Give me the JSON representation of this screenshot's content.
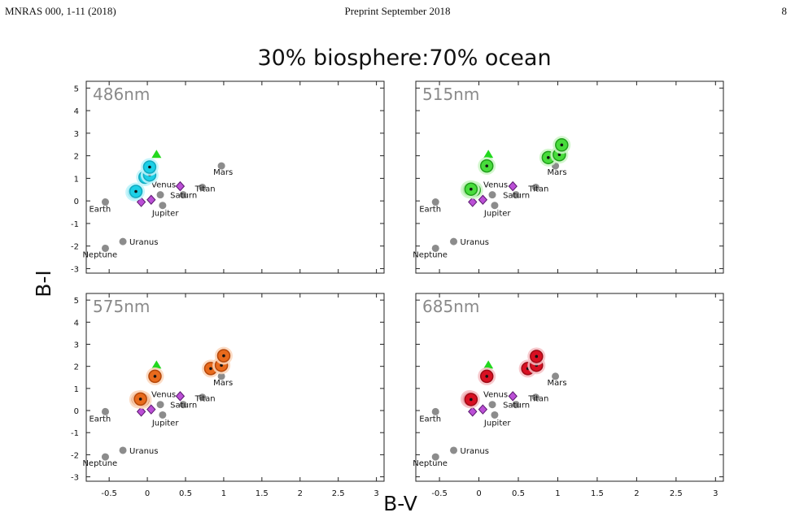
{
  "header": {
    "left": "MNRAS 000, 1-11 (2018)",
    "center": "Preprint September 2018",
    "right": "8"
  },
  "figure": {
    "suptitle": "30% biosphere:70% ocean",
    "xlabel": "B-V",
    "ylabel": "B-I"
  },
  "chart_data": {
    "type": "scatter",
    "title": "30% biosphere:70% ocean",
    "xlabel": "B-V",
    "ylabel": "B-I",
    "xlim": [
      -0.8,
      3.1
    ],
    "ylim": [
      -3.2,
      5.3
    ],
    "xticks": [
      -0.5,
      0,
      0.5,
      1,
      1.5,
      2,
      2.5,
      3
    ],
    "xtick_labels": [
      "-0.5",
      "0",
      "0.5",
      "1",
      "1.5",
      "2",
      "2.5",
      "3"
    ],
    "yticks": [
      -3,
      -2,
      -1,
      0,
      1,
      2,
      3,
      4,
      5
    ],
    "ytick_labels": [
      "-3",
      "-2",
      "-1",
      "0",
      "1",
      "2",
      "3",
      "4",
      "5"
    ],
    "grid": false,
    "planets": [
      {
        "name": "Earth",
        "x": -0.55,
        "y": -0.05
      },
      {
        "name": "Venus",
        "x": 0.17,
        "y": 0.27
      },
      {
        "name": "Jupiter",
        "x": 0.2,
        "y": -0.2
      },
      {
        "name": "Saturn",
        "x": 0.47,
        "y": 0.27
      },
      {
        "name": "Titan",
        "x": 0.72,
        "y": 0.6
      },
      {
        "name": "Mars",
        "x": 0.97,
        "y": 1.55
      },
      {
        "name": "Uranus",
        "x": -0.32,
        "y": -1.8
      },
      {
        "name": "Neptune",
        "x": -0.55,
        "y": -2.1
      }
    ],
    "purple_diamonds": [
      {
        "x": -0.08,
        "y": -0.05
      },
      {
        "x": 0.05,
        "y": 0.05
      },
      {
        "x": 0.43,
        "y": 0.65
      }
    ],
    "green_triangle": {
      "x": 0.12,
      "y": 2.05
    },
    "panels": [
      {
        "label": "486nm",
        "colors": {
          "fill": "#1ccfe6",
          "ring": "#10a9bf",
          "halo": "#bdf3fa"
        },
        "points": [
          {
            "x": -0.17,
            "y": 0.38
          },
          {
            "x": -0.15,
            "y": 0.42
          },
          {
            "x": -0.03,
            "y": 1.05
          },
          {
            "x": 0.03,
            "y": 1.15
          },
          {
            "x": 0.03,
            "y": 1.5
          }
        ]
      },
      {
        "label": "515nm",
        "colors": {
          "fill": "#48dc3c",
          "ring": "#1f9e1a",
          "halo": "#cdf6c7"
        },
        "points": [
          {
            "x": -0.12,
            "y": 0.5
          },
          {
            "x": -0.06,
            "y": 0.48
          },
          {
            "x": -0.1,
            "y": 0.52
          },
          {
            "x": 0.1,
            "y": 1.55
          },
          {
            "x": 0.88,
            "y": 1.92
          },
          {
            "x": 1.02,
            "y": 2.05
          },
          {
            "x": 1.05,
            "y": 2.48
          }
        ]
      },
      {
        "label": "575nm",
        "colors": {
          "fill": "#e86a1c",
          "ring": "#b4470a",
          "halo": "#fbd6bb"
        },
        "points": [
          {
            "x": -0.12,
            "y": 0.5
          },
          {
            "x": -0.06,
            "y": 0.48
          },
          {
            "x": -0.09,
            "y": 0.52
          },
          {
            "x": 0.1,
            "y": 1.55
          },
          {
            "x": 0.83,
            "y": 1.9
          },
          {
            "x": 0.97,
            "y": 2.05
          },
          {
            "x": 1.0,
            "y": 2.48
          }
        ]
      },
      {
        "label": "685nm",
        "colors": {
          "fill": "#d81022",
          "ring": "#9e0a15",
          "halo": "#f6c0c4"
        },
        "points": [
          {
            "x": -0.12,
            "y": 0.52
          },
          {
            "x": -0.1,
            "y": 0.5
          },
          {
            "x": 0.1,
            "y": 1.55
          },
          {
            "x": 0.62,
            "y": 1.9
          },
          {
            "x": 0.73,
            "y": 2.05
          },
          {
            "x": 0.73,
            "y": 2.45
          }
        ]
      }
    ]
  }
}
